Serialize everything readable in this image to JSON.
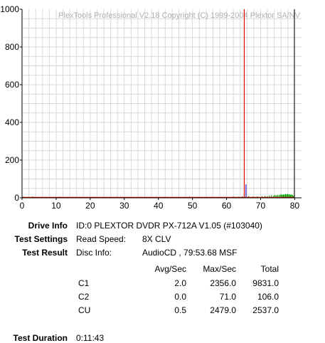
{
  "chart_data": {
    "type": "bar",
    "watermark": "PlexTools Professional V2.18 Copyright (C) 1999-2004 Plextor SA/NV",
    "xlim": [
      0,
      82
    ],
    "ylim": [
      0,
      1000
    ],
    "x_ticks": [
      0,
      10,
      20,
      30,
      40,
      50,
      60,
      70,
      80
    ],
    "x_tick_labels": [
      "0",
      "10",
      "20",
      "30",
      "40",
      "50",
      "60",
      "70",
      "80"
    ],
    "y_ticks": [
      0,
      200,
      400,
      600,
      800,
      1000
    ],
    "y_tick_labels": [
      "0",
      "200",
      "400",
      "600",
      "800",
      "1000"
    ],
    "grid": true,
    "colors": {
      "c1": "#00a000",
      "c2": "#2020d0",
      "cu": "#e00000",
      "end_marker": "#000000",
      "baseline": "#e00000",
      "grid": "#d8d8d8"
    },
    "series": [
      {
        "key": "c1",
        "points": [
          [
            0.4,
            6
          ],
          [
            1.5,
            5
          ],
          [
            3.1,
            7
          ],
          [
            5.0,
            4
          ],
          [
            6.8,
            5
          ],
          [
            9.3,
            4
          ],
          [
            11.1,
            6
          ],
          [
            13.6,
            4
          ],
          [
            15.2,
            5
          ],
          [
            18.4,
            4
          ],
          [
            21.0,
            5
          ],
          [
            24.3,
            4
          ],
          [
            27.9,
            6
          ],
          [
            31.6,
            4
          ],
          [
            35.0,
            5
          ],
          [
            38.7,
            4
          ],
          [
            42.2,
            5
          ],
          [
            45.8,
            4
          ],
          [
            49.1,
            6
          ],
          [
            52.4,
            4
          ],
          [
            55.7,
            5
          ],
          [
            58.9,
            4
          ],
          [
            62.0,
            7
          ],
          [
            63.5,
            6
          ],
          [
            64.6,
            8
          ],
          [
            66.5,
            9
          ],
          [
            67.8,
            7
          ],
          [
            69.0,
            8
          ],
          [
            70.4,
            9
          ],
          [
            71.3,
            10
          ],
          [
            72.0,
            9
          ],
          [
            72.6,
            12
          ],
          [
            73.2,
            14
          ],
          [
            73.8,
            11
          ],
          [
            74.2,
            15
          ],
          [
            74.6,
            13
          ],
          [
            75.0,
            16
          ],
          [
            75.4,
            14
          ],
          [
            75.8,
            17
          ],
          [
            76.1,
            18
          ],
          [
            76.4,
            15
          ],
          [
            76.7,
            19
          ],
          [
            77.0,
            16
          ],
          [
            77.3,
            20
          ],
          [
            77.6,
            18
          ],
          [
            77.9,
            21
          ],
          [
            78.2,
            17
          ],
          [
            78.5,
            19
          ],
          [
            78.8,
            16
          ],
          [
            79.1,
            18
          ],
          [
            79.4,
            14
          ],
          [
            79.7,
            10
          ]
        ]
      },
      {
        "key": "c2",
        "points": [
          [
            65.7,
            71
          ],
          [
            66.2,
            5
          ],
          [
            68.3,
            4
          ]
        ]
      },
      {
        "key": "cu",
        "points": [
          [
            65.2,
            1000
          ]
        ]
      }
    ],
    "end_marker_x": 79.9
  },
  "info": {
    "drive_info_label": "Drive Info",
    "drive_info_value": "ID:0 PLEXTOR DVDR PX-712A V1.05 (#103040)",
    "test_settings_label": "Test Settings",
    "read_speed_label": "Read Speed:",
    "read_speed_value": "8X CLV",
    "test_result_label": "Test Result",
    "disc_info_label": "Disc Info:",
    "disc_info_value": "AudioCD , 79:53.68 MSF",
    "headers": [
      "Avg/Sec",
      "Max/Sec",
      "Total"
    ],
    "rows": [
      {
        "name": "C1",
        "avg": "2.0",
        "max": "2356.0",
        "total": "9831.0"
      },
      {
        "name": "C2",
        "avg": "0.0",
        "max": "71.0",
        "total": "106.0"
      },
      {
        "name": "CU",
        "avg": "0.5",
        "max": "2479.0",
        "total": "2537.0"
      }
    ],
    "test_duration_label": "Test Duration",
    "test_duration_value": "0:11:43"
  }
}
